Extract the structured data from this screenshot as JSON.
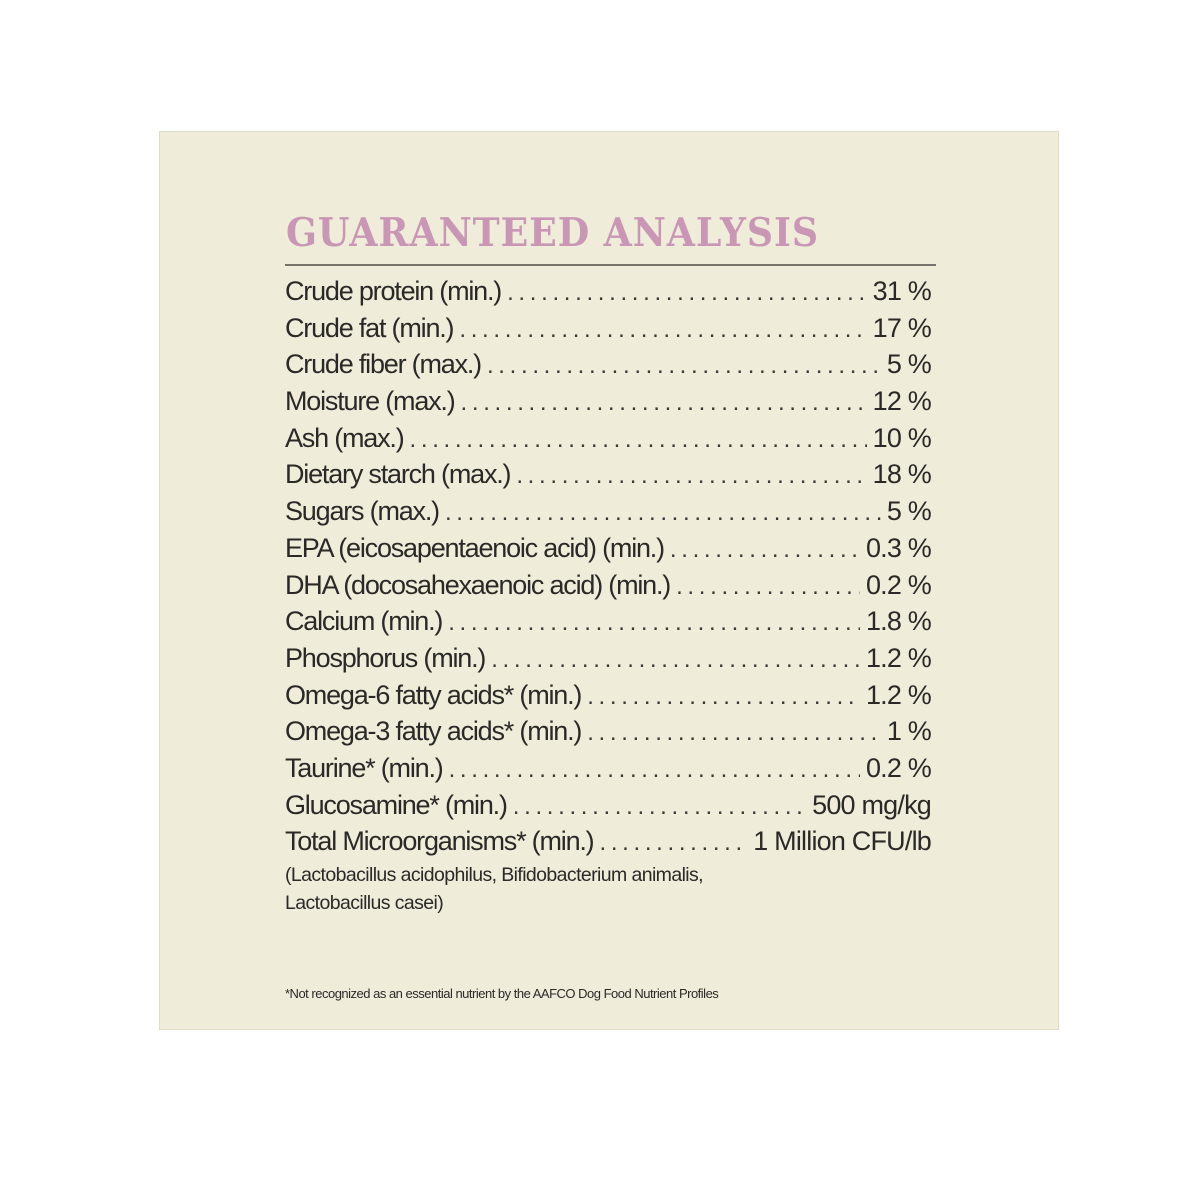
{
  "panel": {
    "title": "GUARANTEED ANALYSIS",
    "title_color": "#c996b6",
    "background_color": "#efecd9",
    "rows": [
      {
        "label": "Crude protein (min.)",
        "value": "31 %"
      },
      {
        "label": "Crude fat (min.)",
        "value": "17 %"
      },
      {
        "label": "Crude fiber (max.)",
        "value": "5 %"
      },
      {
        "label": "Moisture (max.)",
        "value": "12 %"
      },
      {
        "label": "Ash (max.)",
        "value": "10 %"
      },
      {
        "label": "Dietary starch (max.)",
        "value": "18 %"
      },
      {
        "label": "Sugars (max.)",
        "value": "5 %"
      },
      {
        "label": "EPA (eicosapentaenoic acid) (min.)",
        "value": "0.3 %"
      },
      {
        "label": "DHA (docosahexaenoic acid) (min.)",
        "value": "0.2 %"
      },
      {
        "label": "Calcium (min.)",
        "value": "1.8 %"
      },
      {
        "label": "Phosphorus (min.)",
        "value": "1.2 %"
      },
      {
        "label": "Omega-6 fatty acids* (min.)",
        "value": "1.2 %"
      },
      {
        "label": "Omega-3 fatty acids* (min.)",
        "value": "1 %"
      },
      {
        "label": "Taurine* (min.)",
        "value": "0.2 %"
      },
      {
        "label": "Glucosamine* (min.)",
        "value": "500 mg/kg"
      },
      {
        "label": "Total Microorganisms* (min.)",
        "value": "1 Million CFU/lb"
      }
    ],
    "microorganisms_note": "(Lactobacillus acidophilus, Bifidobacterium animalis, Lactobacillus casei)",
    "footnote": "*Not recognized as an essential nutrient by the AAFCO Dog Food Nutrient Profiles"
  }
}
